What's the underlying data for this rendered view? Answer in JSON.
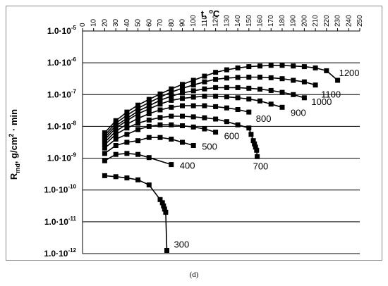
{
  "caption": "(d)",
  "chart_data": {
    "type": "line",
    "title": "",
    "xlabel": "t, °C",
    "ylabel": "R<sub>md</sub>, g/cm<sup>2</sup> · min",
    "xlim": [
      0,
      250
    ],
    "x_ticks": [
      0,
      10,
      20,
      30,
      40,
      50,
      60,
      70,
      80,
      90,
      100,
      110,
      120,
      130,
      140,
      150,
      160,
      170,
      180,
      190,
      200,
      210,
      220,
      230,
      240,
      250
    ],
    "y_scale": "log",
    "ylim": [
      "1.0·10-12",
      "1.0·10-5"
    ],
    "y_ticks": [
      {
        "exp": -5,
        "mant": "1.0·10",
        "sup": "-5"
      },
      {
        "exp": -6,
        "mant": "1.0·10",
        "sup": "-6"
      },
      {
        "exp": -7,
        "mant": "1.0·10",
        "sup": "-7"
      },
      {
        "exp": -8,
        "mant": "1.0·10",
        "sup": "-8"
      },
      {
        "exp": -9,
        "mant": "1.0·10",
        "sup": "-9"
      },
      {
        "exp": -10,
        "mant": "1.0·10",
        "sup": "-10"
      },
      {
        "exp": -11,
        "mant": "1.0·10",
        "sup": "-11"
      },
      {
        "exp": -12,
        "mant": "1.0·10",
        "sup": "-12"
      }
    ],
    "grid": "horizontal",
    "x_axis_position": "top",
    "series": [
      {
        "label": "300",
        "x": [
          20,
          30,
          40,
          50,
          60,
          70,
          72,
          73,
          74,
          75,
          76
        ],
        "log10y": [
          -9.55,
          -9.58,
          -9.62,
          -9.68,
          -9.84,
          -10.3,
          -10.4,
          -10.5,
          -10.6,
          -10.7,
          -11.9
        ]
      },
      {
        "label": "400",
        "x": [
          20,
          30,
          40,
          50,
          60,
          80
        ],
        "log10y": [
          -9.08,
          -8.88,
          -8.85,
          -8.88,
          -8.98,
          -9.2
        ]
      },
      {
        "label": "500",
        "x": [
          20,
          30,
          40,
          50,
          60,
          70,
          80,
          90,
          100
        ],
        "log10y": [
          -8.85,
          -8.6,
          -8.5,
          -8.45,
          -8.35,
          -8.35,
          -8.4,
          -8.5,
          -8.6
        ]
      },
      {
        "label": "600",
        "x": [
          20,
          30,
          40,
          50,
          60,
          70,
          80,
          90,
          100,
          110,
          120
        ],
        "log10y": [
          -8.68,
          -8.4,
          -8.25,
          -8.1,
          -8,
          -7.95,
          -7.95,
          -7.98,
          -8.02,
          -8.08,
          -8.18
        ]
      },
      {
        "label": "700",
        "x": [
          20,
          30,
          40,
          50,
          60,
          70,
          80,
          90,
          100,
          110,
          120,
          130,
          140,
          150,
          152,
          154,
          155,
          156,
          157,
          157.5
        ],
        "log10y": [
          -8.58,
          -8.25,
          -8.05,
          -7.9,
          -7.8,
          -7.72,
          -7.68,
          -7.68,
          -7.7,
          -7.73,
          -7.77,
          -7.85,
          -7.95,
          -8.05,
          -8.25,
          -8.45,
          -8.55,
          -8.65,
          -8.75,
          -8.95
        ]
      },
      {
        "label": "800",
        "x": [
          20,
          30,
          40,
          50,
          60,
          70,
          80,
          90,
          100,
          110,
          120,
          130,
          140,
          150
        ],
        "log10y": [
          -8.5,
          -8.15,
          -7.93,
          -7.75,
          -7.6,
          -7.48,
          -7.4,
          -7.35,
          -7.35,
          -7.35,
          -7.38,
          -7.42,
          -7.47,
          -7.55
        ]
      },
      {
        "label": "900",
        "x": [
          20,
          30,
          40,
          50,
          60,
          70,
          80,
          90,
          100,
          110,
          120,
          130,
          140,
          150,
          160,
          170,
          180
        ],
        "log10y": [
          -8.42,
          -8.05,
          -7.82,
          -7.6,
          -7.45,
          -7.3,
          -7.18,
          -7.12,
          -7.08,
          -7.05,
          -7.05,
          -7.07,
          -7.1,
          -7.14,
          -7.2,
          -7.3,
          -7.4
        ]
      },
      {
        "label": "1000",
        "x": [
          20,
          30,
          40,
          50,
          60,
          70,
          80,
          90,
          100,
          110,
          120,
          130,
          140,
          150,
          160,
          170,
          180,
          190,
          200
        ],
        "log10y": [
          -8.35,
          -7.98,
          -7.75,
          -7.52,
          -7.35,
          -7.18,
          -7.05,
          -6.95,
          -6.88,
          -6.82,
          -6.78,
          -6.78,
          -6.78,
          -6.8,
          -6.83,
          -6.87,
          -6.93,
          -7,
          -7.1
        ]
      },
      {
        "label": "1100",
        "x": [
          20,
          30,
          40,
          50,
          60,
          70,
          80,
          90,
          100,
          110,
          120,
          130,
          140,
          150,
          160,
          170,
          180,
          190,
          200,
          210
        ],
        "log10y": [
          -8.28,
          -7.9,
          -7.65,
          -7.43,
          -7.25,
          -7.08,
          -6.92,
          -6.8,
          -6.7,
          -6.6,
          -6.52,
          -6.48,
          -6.46,
          -6.45,
          -6.45,
          -6.47,
          -6.5,
          -6.55,
          -6.6,
          -6.7
        ]
      },
      {
        "label": "1200",
        "x": [
          20,
          30,
          40,
          50,
          60,
          70,
          80,
          90,
          100,
          110,
          120,
          130,
          140,
          150,
          160,
          170,
          180,
          190,
          200,
          210,
          220,
          230
        ],
        "log10y": [
          -8.2,
          -7.82,
          -7.55,
          -7.33,
          -7.15,
          -6.98,
          -6.82,
          -6.68,
          -6.55,
          -6.42,
          -6.3,
          -6.22,
          -6.16,
          -6.12,
          -6.1,
          -6.08,
          -6.08,
          -6.1,
          -6.12,
          -6.16,
          -6.25,
          -6.55
        ]
      }
    ]
  }
}
